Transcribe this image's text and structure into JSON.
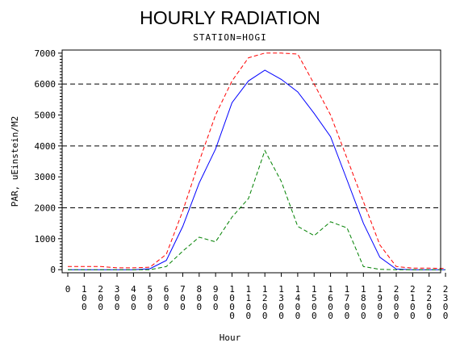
{
  "chart_data": {
    "type": "line",
    "title": "HOURLY RADIATION",
    "subtitle": "STATION=HOGI",
    "xlabel": "Hour",
    "ylabel": "PAR, uEinstein/M2",
    "x": [
      0,
      100,
      200,
      300,
      400,
      500,
      600,
      700,
      800,
      900,
      1000,
      1100,
      1200,
      1300,
      1400,
      1500,
      1600,
      1700,
      1800,
      1900,
      2000,
      2100,
      2200,
      2300
    ],
    "x_tick_labels": [
      [
        "0"
      ],
      [
        "1",
        "0",
        "0"
      ],
      [
        "2",
        "0",
        "0"
      ],
      [
        "3",
        "0",
        "0"
      ],
      [
        "4",
        "0",
        "0"
      ],
      [
        "5",
        "0",
        "0"
      ],
      [
        "6",
        "0",
        "0"
      ],
      [
        "7",
        "0",
        "0"
      ],
      [
        "8",
        "0",
        "0"
      ],
      [
        "9",
        "0",
        "0"
      ],
      [
        "1",
        "0",
        "0",
        "0"
      ],
      [
        "1",
        "1",
        "0",
        "0"
      ],
      [
        "1",
        "2",
        "0",
        "0"
      ],
      [
        "1",
        "3",
        "0",
        "0"
      ],
      [
        "1",
        "4",
        "0",
        "0"
      ],
      [
        "1",
        "5",
        "0",
        "0"
      ],
      [
        "1",
        "6",
        "0",
        "0"
      ],
      [
        "1",
        "7",
        "0",
        "0"
      ],
      [
        "1",
        "8",
        "0",
        "0"
      ],
      [
        "1",
        "9",
        "0",
        "0"
      ],
      [
        "2",
        "0",
        "0",
        "0"
      ],
      [
        "2",
        "1",
        "0",
        "0"
      ],
      [
        "2",
        "2",
        "0",
        "0"
      ],
      [
        "2",
        "3",
        "0",
        "0"
      ]
    ],
    "ylim": [
      -100,
      7100
    ],
    "yticks": [
      0,
      1000,
      2000,
      3000,
      4000,
      5000,
      6000,
      7000
    ],
    "ytick_labels": [
      "0",
      "1000",
      "2000",
      "3000",
      "4000",
      "5000",
      "6000",
      "7000"
    ],
    "reference_lines": [
      2000,
      4000,
      6000
    ],
    "series": [
      {
        "color": "#ff0000",
        "style": "dashed",
        "values": [
          100,
          100,
          100,
          60,
          60,
          80,
          500,
          1900,
          3500,
          5000,
          6100,
          6850,
          7000,
          7000,
          6970,
          6000,
          5000,
          3600,
          2200,
          800,
          100,
          50,
          50,
          40
        ]
      },
      {
        "color": "#0000ff",
        "style": "solid",
        "values": [
          0,
          0,
          0,
          0,
          0,
          30,
          300,
          1400,
          2800,
          3900,
          5400,
          6100,
          6450,
          6150,
          5750,
          5050,
          4300,
          2900,
          1500,
          400,
          20,
          0,
          0,
          0
        ]
      },
      {
        "color": "#008000",
        "style": "dashed",
        "values": [
          0,
          0,
          0,
          0,
          0,
          0,
          100,
          600,
          1050,
          900,
          1700,
          2300,
          3850,
          2850,
          1400,
          1100,
          1550,
          1350,
          100,
          10,
          0,
          0,
          0,
          0
        ]
      }
    ]
  }
}
